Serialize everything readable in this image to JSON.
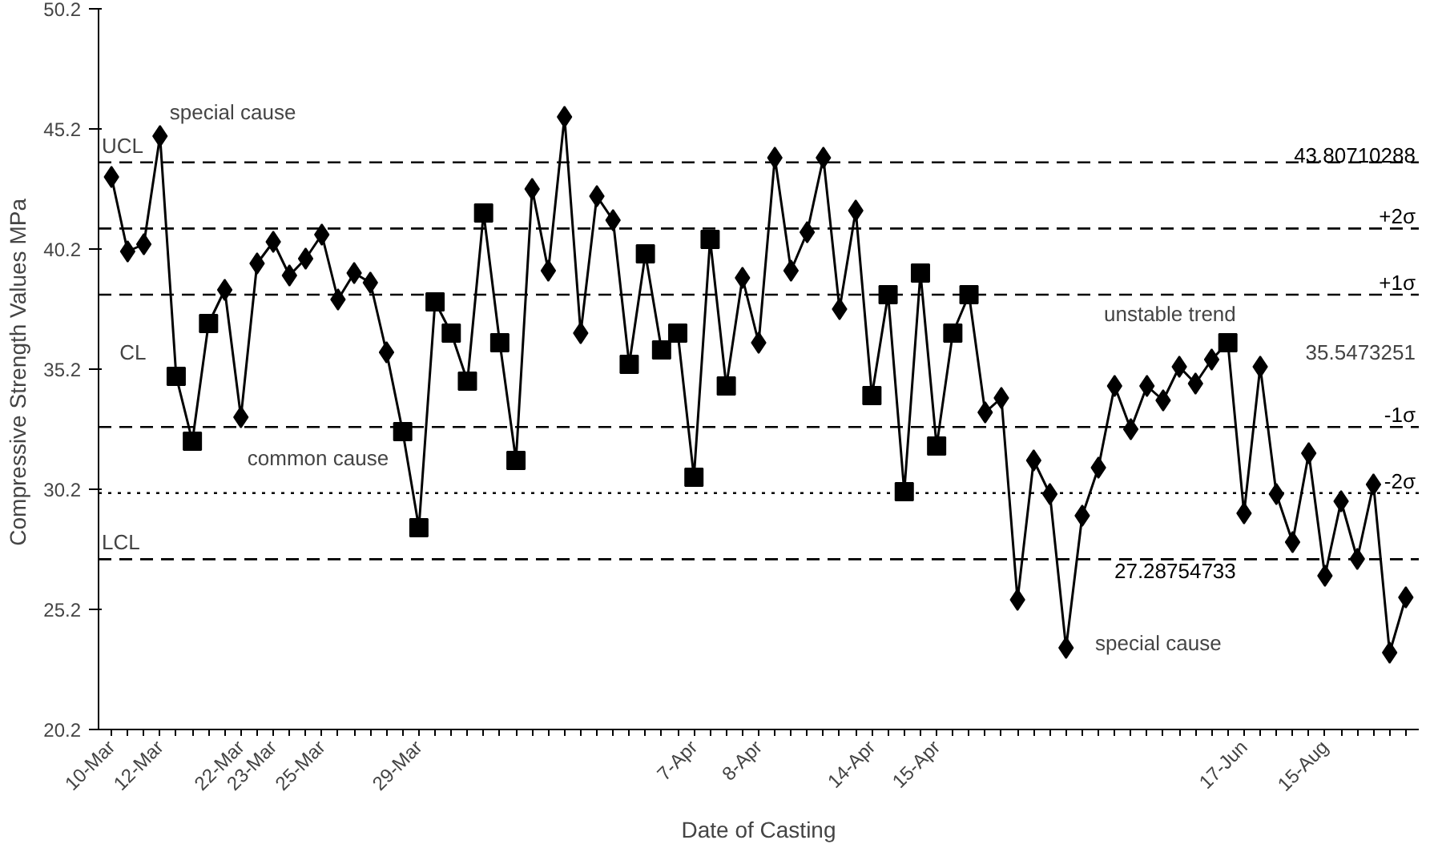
{
  "chart_data": {
    "type": "line",
    "xlabel": "Date of Casting",
    "ylabel": "Compressive Strength Values  MPa",
    "categories": [
      "10-Mar",
      null,
      null,
      "12-Mar",
      null,
      null,
      null,
      null,
      "22-Mar",
      null,
      "23-Mar",
      null,
      null,
      "25-Mar",
      null,
      null,
      null,
      null,
      null,
      "29-Mar",
      null,
      null,
      null,
      null,
      null,
      null,
      null,
      null,
      null,
      null,
      null,
      null,
      null,
      null,
      null,
      null,
      "7-Apr",
      null,
      null,
      null,
      "8-Apr",
      null,
      null,
      null,
      null,
      null,
      null,
      "14-Apr",
      null,
      null,
      null,
      "15-Apr",
      null,
      null,
      null,
      null,
      null,
      null,
      null,
      null,
      null,
      null,
      null,
      null,
      null,
      null,
      null,
      null,
      null,
      null,
      "17-Jun",
      null,
      null,
      null,
      null,
      "15-Aug",
      null,
      null,
      null,
      null,
      null
    ],
    "series": [
      {
        "marker": "diamond",
        "color": "#000000",
        "values": [
          43.2,
          40.1,
          40.4,
          44.9,
          34.9,
          32.2,
          37.1,
          38.5,
          33.2,
          39.6,
          40.5,
          39.1,
          39.8,
          40.8,
          38.1,
          39.2,
          38.8,
          35.9,
          32.6,
          28.6,
          38.0,
          36.7,
          34.7,
          41.7,
          36.3,
          31.4,
          42.7,
          39.3,
          45.7,
          36.7,
          42.4,
          41.4,
          35.4,
          40.0,
          36.0,
          36.7,
          30.7,
          40.6,
          34.5,
          39.0,
          36.3,
          44.0,
          39.3,
          40.9,
          44.0,
          37.7,
          41.8,
          34.1,
          38.3,
          30.1,
          39.2,
          32.0,
          36.7,
          38.3,
          33.4,
          34.0,
          25.6,
          31.4,
          30.0,
          23.6,
          29.1,
          31.1,
          34.5,
          32.7,
          34.5,
          33.9,
          35.3,
          34.6,
          35.6,
          36.3,
          29.2,
          35.3,
          30.0,
          28.0,
          31.7,
          26.6,
          29.7,
          27.3,
          30.4,
          23.4,
          25.7
        ]
      },
      {
        "type": "scatter",
        "marker": "square",
        "color": "#000000",
        "values": [
          null,
          null,
          null,
          null,
          34.9,
          32.2,
          37.1,
          null,
          null,
          null,
          null,
          null,
          null,
          null,
          null,
          null,
          null,
          null,
          32.6,
          28.6,
          38.0,
          36.7,
          34.7,
          41.7,
          36.3,
          31.4,
          null,
          null,
          null,
          null,
          null,
          null,
          35.4,
          40.0,
          36.0,
          36.7,
          30.7,
          40.6,
          34.5,
          null,
          null,
          null,
          null,
          null,
          null,
          null,
          null,
          34.1,
          38.3,
          30.1,
          39.2,
          32.0,
          36.7,
          38.3,
          null,
          null,
          null,
          null,
          null,
          null,
          null,
          null,
          null,
          null,
          null,
          null,
          null,
          null,
          null,
          36.3,
          null,
          null,
          null,
          null,
          null,
          null,
          null,
          null,
          null,
          null,
          null
        ]
      }
    ],
    "ylim": [
      20.2,
      50.2
    ],
    "yticks": [
      20.2,
      25.2,
      30.2,
      35.2,
      40.2,
      45.2,
      50.2
    ],
    "ref_lines": [
      {
        "axis": "y",
        "value": 43.80710288,
        "label": "43.80710288",
        "color": "#000000",
        "line_style": "dashed"
      },
      {
        "axis": "y",
        "value": 41.054,
        "label": "+2σ",
        "color": "#000000",
        "line_style": "dashed"
      },
      {
        "axis": "y",
        "value": 38.3,
        "label": "+1σ",
        "color": "#000000",
        "line_style": "dashed"
      },
      {
        "axis": "y",
        "value": 32.79,
        "label": "-1σ",
        "color": "#000000",
        "line_style": "dashed"
      },
      {
        "axis": "y",
        "value": 30.04,
        "label": "-2σ",
        "color": "#000000",
        "line_style": "dotted"
      },
      {
        "axis": "y",
        "value": 27.28754733,
        "label": "27.28754733",
        "color": "#000000",
        "line_style": "dashed"
      }
    ],
    "annotations": [
      {
        "text": "UCL",
        "x": "10-Mar",
        "y": 43.80710288
      },
      "CL",
      {
        "text": "LCL",
        "x": "10-Mar",
        "y": 27.28754733
      },
      "35.5473251",
      {
        "text": "special cause",
        "x": "12-Mar",
        "y": 45.2
      },
      "common cause",
      "unstable trend",
      "special cause"
    ],
    "grid": false
  }
}
